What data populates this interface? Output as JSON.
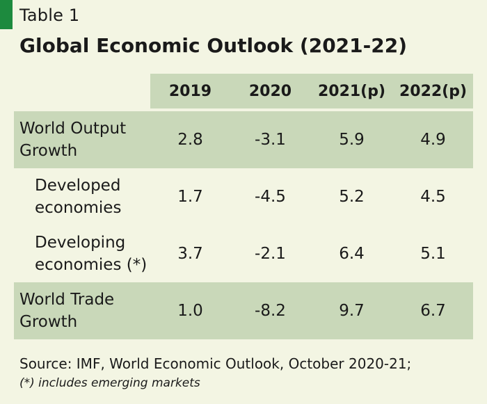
{
  "header": {
    "table_label": "Table 1",
    "title": "Global Economic Outlook (2021-22)"
  },
  "table": {
    "columns": [
      "2019",
      "2020",
      "2021(p)",
      "2022(p)"
    ],
    "rows": [
      {
        "label_line1": "World Output",
        "label_line2": "Growth",
        "values": [
          "2.8",
          "-3.1",
          "5.9",
          "4.9"
        ]
      },
      {
        "label_line1": "Developed",
        "label_line2": "economies",
        "values": [
          "1.7",
          "-4.5",
          "5.2",
          "4.5"
        ]
      },
      {
        "label_line1": "Developing",
        "label_line2": "economies (*)",
        "values": [
          "3.7",
          "-2.1",
          "6.4",
          "5.1"
        ]
      },
      {
        "label_line1": "World Trade",
        "label_line2": "Growth",
        "values": [
          "1.0",
          "-8.2",
          "9.7",
          "6.7"
        ]
      }
    ]
  },
  "footer": {
    "source": "Source: IMF, World Economic Outlook, October 2020-21;",
    "note": "(*) includes emerging markets"
  },
  "colors": {
    "background": "#f3f5e3",
    "shade": "#c9d8b9",
    "accent": "#1d8a3e"
  }
}
